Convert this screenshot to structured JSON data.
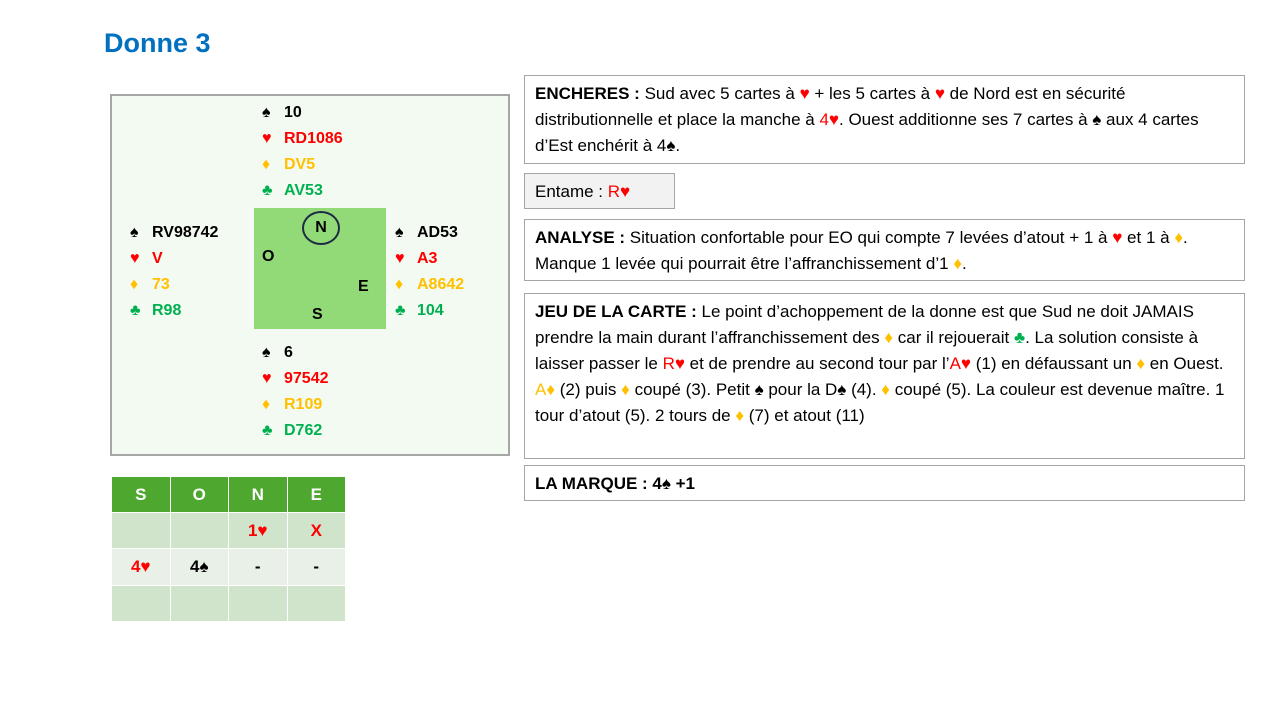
{
  "title": "Donne 3",
  "colors": {
    "spade": "#000000",
    "heart": "#ff0000",
    "diamond": "#ffc000",
    "club": "#00b050",
    "title": "#0070c0",
    "table": "#92d977"
  },
  "suits": {
    "spade": "♠",
    "heart": "♥",
    "diamond": "♦",
    "club": "♣"
  },
  "hands": {
    "north": {
      "spade": "10",
      "heart": "RD1086",
      "diamond": "DV5",
      "club": "AV53"
    },
    "west": {
      "spade": "RV98742",
      "heart": "V",
      "diamond": "73",
      "club": "R98"
    },
    "east": {
      "spade": "AD53",
      "heart": "A3",
      "diamond": "A8642",
      "club": "104"
    },
    "south": {
      "spade": "6",
      "heart": "97542",
      "diamond": "R109",
      "club": "D762"
    }
  },
  "compass": {
    "n": "N",
    "o": "O",
    "e": "E",
    "s": "S"
  },
  "boxes": [
    [
      {
        "t": "ENCHERES : ",
        "b": 1
      },
      {
        "t": "Sud avec 5 cartes à "
      },
      {
        "t": "♥",
        "c": "#ff0000"
      },
      {
        "t": " + les 5 cartes à "
      },
      {
        "t": "♥",
        "c": "#ff0000"
      },
      {
        "t": " de Nord est en sécurité distributionnelle et place la manche à "
      },
      {
        "t": "4♥",
        "c": "#ff0000"
      },
      {
        "t": ". Ouest additionne ses 7 cartes à "
      },
      {
        "t": "♠"
      },
      {
        "t": " aux 4 cartes d’Est enchérit à 4♠."
      }
    ],
    [
      {
        "t": "Entame : "
      },
      {
        "t": "R♥",
        "c": "#ff0000"
      }
    ],
    [
      {
        "t": "ANALYSE : ",
        "b": 1
      },
      {
        "t": "Situation confortable pour EO qui compte 7 levées d’atout + 1 à "
      },
      {
        "t": "♥",
        "c": "#ff0000"
      },
      {
        "t": " et 1 à "
      },
      {
        "t": "♦",
        "c": "#ffc000"
      },
      {
        "t": ". Manque 1 levée qui pourrait être l’affranchissement d’1 "
      },
      {
        "t": "♦",
        "c": "#ffc000"
      },
      {
        "t": "."
      }
    ],
    [
      {
        "t": "JEU DE LA CARTE : ",
        "b": 1
      },
      {
        "t": "Le point d’achoppement de la donne est que Sud ne doit JAMAIS prendre la main durant l’affranchissement des "
      },
      {
        "t": "♦",
        "c": "#ffc000"
      },
      {
        "t": " car il rejouerait "
      },
      {
        "t": "♣",
        "c": "#00b050"
      },
      {
        "t": ". La solution consiste à laisser passer le "
      },
      {
        "t": "R♥",
        "c": "#ff0000"
      },
      {
        "t": " et de prendre au second tour par l’"
      },
      {
        "t": "A♥",
        "c": "#ff0000"
      },
      {
        "t": " (1) en défaussant un "
      },
      {
        "t": "♦",
        "c": "#ffc000"
      },
      {
        "t": " en Ouest. "
      },
      {
        "t": "A♦",
        "c": "#ffc000"
      },
      {
        "t": " (2) puis "
      },
      {
        "t": "♦",
        "c": "#ffc000"
      },
      {
        "t": " coupé (3). Petit "
      },
      {
        "t": "♠"
      },
      {
        "t": " pour la D♠ (4). "
      },
      {
        "t": "♦",
        "c": "#ffc000"
      },
      {
        "t": " coupé (5). La couleur est devenue maître. 1 tour d’atout (5). 2 tours de "
      },
      {
        "t": "♦",
        "c": "#ffc000"
      },
      {
        "t": " (7) et atout (11)"
      }
    ],
    [
      {
        "t": "LA MARQUE : ",
        "b": 1
      },
      {
        "t": "4♠ +1",
        "b": 1
      }
    ]
  ],
  "bidding": {
    "headers": [
      "S",
      "O",
      "N",
      "E"
    ],
    "rows": [
      [
        {
          "t": ""
        },
        {
          "t": ""
        },
        {
          "t": "1♥",
          "c": "#ff0000"
        },
        {
          "t": "X",
          "c": "#ff0000"
        }
      ],
      [
        {
          "t": "4♥",
          "c": "#ff0000"
        },
        {
          "t": "4♠",
          "c": "#000000"
        },
        {
          "t": "-",
          "c": "#000000"
        },
        {
          "t": "-",
          "c": "#000000"
        }
      ],
      [
        {
          "t": ""
        },
        {
          "t": ""
        },
        {
          "t": ""
        },
        {
          "t": ""
        }
      ]
    ]
  }
}
